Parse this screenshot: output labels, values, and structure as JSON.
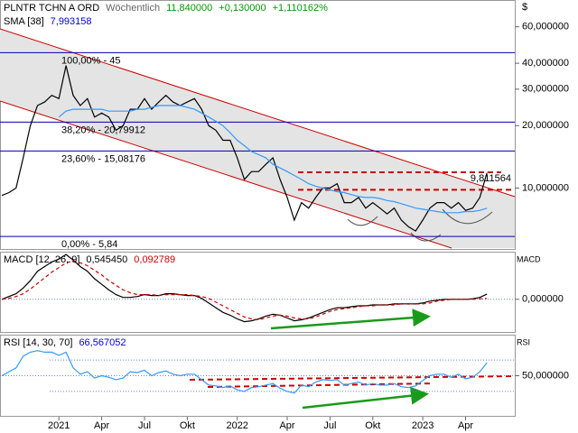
{
  "chart_data": [
    {
      "type": "line",
      "title": "PLNTR TCHN A ORD",
      "interval": "Wöchentlich",
      "last": "11,840000",
      "change": "+0,130000",
      "change_pct": "+1,110162%",
      "unit": "$",
      "log_scale": true,
      "ylim": [
        5.13,
        79.2
      ],
      "yticks": [
        {
          "value": 60,
          "label": "60,000000"
        },
        {
          "value": 40,
          "label": "40,000000"
        },
        {
          "value": 30,
          "label": "30,000000"
        },
        {
          "value": 20,
          "label": "20,000000"
        },
        {
          "value": 10,
          "label": "10,000000"
        }
      ],
      "levels_color": "#0000aa",
      "levels": [
        {
          "value": 45,
          "label": "100,00% - 45"
        },
        {
          "value": 20.79912,
          "label": "38,20% - 20,79912"
        },
        {
          "value": 15.08176,
          "label": "23,60% - 15,08176"
        },
        {
          "value": 5.84,
          "label": "0,00% - 5,84"
        }
      ],
      "annotation": {
        "value": 9.811564,
        "label": "9,811564",
        "color": "#cc0000"
      },
      "series": [
        {
          "color": "#000000",
          "values": [
            9.2,
            9.5,
            10,
            14,
            20,
            25,
            26,
            28,
            27,
            39,
            28,
            25,
            27,
            22,
            23,
            22,
            19,
            20,
            24,
            24,
            27,
            24,
            26,
            28,
            26,
            25,
            26,
            27,
            24,
            20,
            19,
            17,
            17,
            14,
            11,
            12,
            12,
            13,
            14,
            11,
            9,
            7,
            8.5,
            8,
            9,
            10,
            10,
            10.5,
            8.5,
            8.5,
            9,
            8,
            8.5,
            8,
            7.5,
            8,
            7,
            6.5,
            6.2,
            7,
            8,
            8.5,
            8.5,
            8,
            8.5,
            7.8,
            8,
            9,
            11.84
          ]
        },
        {
          "name": "SMA [38]",
          "value_label": "7,993158",
          "color": "#3399ff",
          "values": [
            null,
            null,
            null,
            null,
            null,
            null,
            null,
            null,
            22,
            23.5,
            24,
            24,
            24,
            24,
            24,
            23.5,
            23.5,
            23.5,
            23.5,
            24,
            24,
            24.5,
            25,
            25,
            25,
            25,
            24.5,
            24,
            23,
            22,
            21,
            20,
            18.5,
            17,
            16,
            15,
            14.5,
            14,
            13,
            12.5,
            12,
            11.5,
            11,
            10.5,
            10.2,
            10,
            9.8,
            9.6,
            9.5,
            9.3,
            9.1,
            9,
            9,
            8.9,
            8.7,
            8.6,
            8.4,
            8.2,
            8,
            7.9,
            7.8,
            7.7,
            7.6,
            7.6,
            7.6,
            7.7,
            7.7,
            7.8,
            7.993158
          ]
        }
      ]
    },
    {
      "type": "line",
      "title": "MACD [12, 26, 9]",
      "axis_label": "MACD",
      "ylim": [
        -3.5,
        5
      ],
      "yticks": [
        {
          "value": 0,
          "label": "0,000000"
        }
      ],
      "series": [
        {
          "value_label": "0,545450",
          "color": "#000000",
          "values": [
            0,
            0.3,
            0.6,
            1.2,
            2,
            3,
            3.5,
            4,
            4.3,
            4.8,
            4.2,
            3.5,
            3,
            2.2,
            1.6,
            1,
            0.5,
            0.2,
            0.2,
            0.3,
            0.5,
            0.4,
            0.4,
            0.6,
            0.6,
            0.5,
            0.4,
            0.4,
            0.1,
            -0.4,
            -0.9,
            -1.4,
            -1.7,
            -2.1,
            -2.4,
            -2.3,
            -2.1,
            -1.8,
            -1.6,
            -1.7,
            -2,
            -2.3,
            -2.2,
            -2,
            -1.7,
            -1.4,
            -1.1,
            -0.9,
            -0.9,
            -0.8,
            -0.7,
            -0.7,
            -0.6,
            -0.6,
            -0.6,
            -0.5,
            -0.5,
            -0.5,
            -0.5,
            -0.4,
            -0.2,
            -0.1,
            0,
            0,
            0,
            0,
            0.05,
            0.2,
            0.54545
          ]
        },
        {
          "value_label": "0,092789",
          "color": "#cc0000",
          "dashed": true,
          "values": [
            0,
            0.1,
            0.3,
            0.6,
            1.1,
            1.7,
            2.3,
            2.9,
            3.4,
            3.9,
            4.1,
            3.9,
            3.6,
            3.1,
            2.6,
            2,
            1.5,
            1,
            0.7,
            0.5,
            0.5,
            0.5,
            0.4,
            0.5,
            0.5,
            0.5,
            0.5,
            0.4,
            0.3,
            0.1,
            -0.3,
            -0.7,
            -1.1,
            -1.5,
            -1.9,
            -2.1,
            -2.2,
            -2,
            -1.8,
            -1.7,
            -1.8,
            -2,
            -2.1,
            -2.1,
            -1.9,
            -1.6,
            -1.3,
            -1.1,
            -1,
            -0.9,
            -0.8,
            -0.7,
            -0.7,
            -0.6,
            -0.6,
            -0.6,
            -0.5,
            -0.5,
            -0.5,
            -0.5,
            -0.4,
            -0.2,
            -0.1,
            0,
            0,
            0,
            0,
            0.05,
            0.092789
          ]
        }
      ]
    },
    {
      "type": "line",
      "title": "RSI [14, 30, 70]",
      "axis_label": "RSI",
      "ylim": [
        0,
        100
      ],
      "yticks": [
        {
          "value": 50,
          "label": "50,000000"
        }
      ],
      "levels": [
        70,
        30
      ],
      "levels_color": "#6688cc",
      "categories": [
        null,
        null,
        null,
        null,
        null,
        null,
        null,
        null,
        "2021",
        null,
        null,
        null,
        null,
        null,
        "Apr",
        null,
        null,
        null,
        null,
        null,
        "Jul",
        null,
        null,
        null,
        null,
        null,
        "Okt",
        null,
        null,
        null,
        null,
        null,
        null,
        "2022",
        null,
        null,
        null,
        null,
        null,
        null,
        "Apr",
        null,
        null,
        null,
        null,
        null,
        "Jul",
        null,
        null,
        null,
        null,
        null,
        "Okt",
        null,
        null,
        null,
        null,
        null,
        null,
        "2023",
        null,
        null,
        null,
        null,
        null,
        "Apr",
        null,
        null,
        null
      ],
      "series": [
        {
          "value_label": "66,567052",
          "color": "#3399ff",
          "values": [
            50,
            55,
            60,
            75,
            80,
            82,
            80,
            80,
            76,
            80,
            60,
            52,
            55,
            47,
            50,
            48,
            45,
            47,
            55,
            54,
            57,
            50,
            54,
            56,
            52,
            50,
            52,
            52,
            45,
            38,
            37,
            35,
            37,
            32,
            30,
            35,
            36,
            38,
            40,
            34,
            30,
            28,
            38,
            36,
            42,
            45,
            44,
            45,
            38,
            40,
            42,
            38,
            40,
            38,
            38,
            40,
            36,
            35,
            37,
            44,
            50,
            52,
            52,
            48,
            52,
            46,
            48,
            55,
            66.567052
          ]
        }
      ]
    }
  ]
}
